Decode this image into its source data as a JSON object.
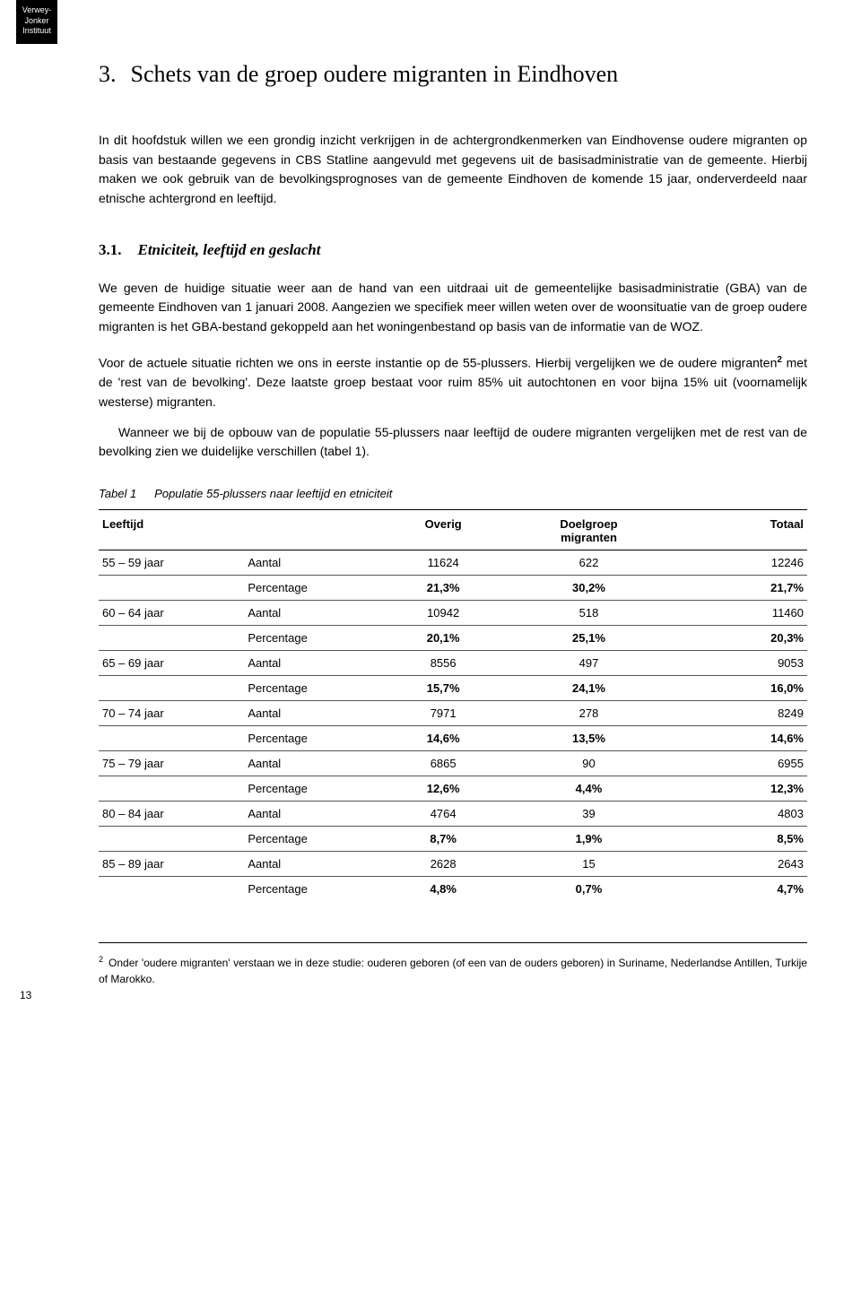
{
  "logo": {
    "line1": "Verwey-",
    "line2": "Jonker",
    "line3": "Instituut"
  },
  "chapter": {
    "num": "3.",
    "title": "Schets van de groep oudere migranten in Eindhoven"
  },
  "intro": "In dit hoofdstuk willen we een grondig inzicht verkrijgen in de achtergrondkenmerken van Eindhovense oudere migranten op basis van bestaande gegevens in CBS Statline aangevuld met gegevens uit de basisadministratie van de gemeente. Hierbij maken we ook gebruik van de bevolkingsprognoses van de gemeente Eindhoven de komende 15 jaar, onderverdeeld naar etnische achtergrond en leeftijd.",
  "section": {
    "num": "3.1.",
    "title": "Etniciteit, leeftijd en geslacht"
  },
  "para1": "We geven de huidige situatie weer aan de hand van een uitdraai uit de gemeentelijke basisadministratie (GBA) van de gemeente Eindhoven van 1 januari 2008. Aangezien we specifiek meer willen weten over de woonsituatie van de groep oudere migranten is het GBA-bestand gekoppeld aan het woningenbestand op basis van de informatie van de WOZ.",
  "para2a": "Voor de actuele situatie richten we ons in eerste instantie op de 55-plussers. Hierbij vergelijken we de oudere migranten",
  "para2b": " met de 'rest van de bevolking'. Deze laatste groep bestaat voor ruim 85% uit autochtonen en voor bijna 15% uit (voornamelijk westerse) migranten.",
  "para3": "Wanneer we bij de opbouw van de populatie 55-plussers naar leeftijd de oudere migranten vergelijken met de rest van de bevolking zien we duidelijke verschillen (tabel 1).",
  "table": {
    "label": "Tabel 1",
    "caption": "Populatie 55-plussers naar leeftijd en etniciteit",
    "headers": {
      "age": "Leeftijd",
      "overig": "Overig",
      "doelgroep": "Doelgroep",
      "migranten": "migranten",
      "totaal": "Totaal"
    },
    "metrics": {
      "aantal": "Aantal",
      "pct": "Percentage"
    },
    "rows": [
      {
        "age": "55 – 59 jaar",
        "a": [
          "11624",
          "622",
          "12246"
        ],
        "p": [
          "21,3%",
          "30,2%",
          "21,7%"
        ]
      },
      {
        "age": "60 – 64 jaar",
        "a": [
          "10942",
          "518",
          "11460"
        ],
        "p": [
          "20,1%",
          "25,1%",
          "20,3%"
        ]
      },
      {
        "age": "65 – 69 jaar",
        "a": [
          "8556",
          "497",
          "9053"
        ],
        "p": [
          "15,7%",
          "24,1%",
          "16,0%"
        ]
      },
      {
        "age": "70 – 74 jaar",
        "a": [
          "7971",
          "278",
          "8249"
        ],
        "p": [
          "14,6%",
          "13,5%",
          "14,6%"
        ]
      },
      {
        "age": "75 – 79 jaar",
        "a": [
          "6865",
          "90",
          "6955"
        ],
        "p": [
          "12,6%",
          "4,4%",
          "12,3%"
        ]
      },
      {
        "age": "80 – 84 jaar",
        "a": [
          "4764",
          "39",
          "4803"
        ],
        "p": [
          "8,7%",
          "1,9%",
          "8,5%"
        ]
      },
      {
        "age": "85 – 89 jaar",
        "a": [
          "2628",
          "15",
          "2643"
        ],
        "p": [
          "4,8%",
          "0,7%",
          "4,7%"
        ]
      }
    ]
  },
  "footnote": {
    "num": "2",
    "text": "Onder 'oudere migranten' verstaan we in deze studie: ouderen geboren (of een van de ouders geboren) in Suriname, Nederlandse Antillen, Turkije of Marokko."
  },
  "page_num": "13"
}
